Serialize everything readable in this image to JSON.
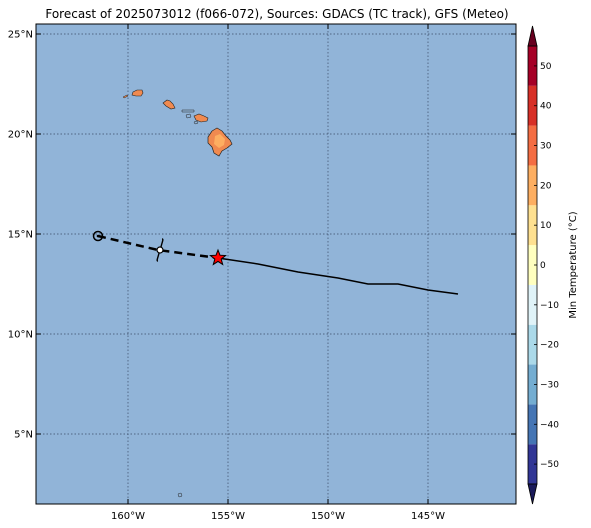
{
  "title": "Forecast of 2025073012 (f066-072), Sources: GDACS (TC track), GFS (Meteo)",
  "map": {
    "ocean_color": "#91b4d8",
    "lat_range": [
      1.5,
      25.5
    ],
    "lon_range": [
      -164.6,
      -140.6
    ],
    "lat_ticks": [
      {
        "value": 25,
        "label": "25°N"
      },
      {
        "value": 20,
        "label": "20°N"
      },
      {
        "value": 15,
        "label": "15°N"
      },
      {
        "value": 10,
        "label": "10°N"
      },
      {
        "value": 5,
        "label": "5°N"
      }
    ],
    "lon_ticks": [
      {
        "value": -160,
        "label": "160°W"
      },
      {
        "value": -155,
        "label": "155°W"
      },
      {
        "value": -150,
        "label": "150°W"
      },
      {
        "value": -145,
        "label": "145°W"
      }
    ],
    "gridlines": "dotted"
  },
  "track": {
    "past_dashed": [
      [
        -161.5,
        14.9
      ],
      [
        -158.5,
        14.2
      ],
      [
        -155.5,
        13.8
      ]
    ],
    "forecast_solid": [
      [
        -155.5,
        13.8
      ],
      [
        -153.5,
        13.5
      ],
      [
        -151.5,
        13.1
      ],
      [
        -149.5,
        12.8
      ],
      [
        -148.0,
        12.5
      ],
      [
        -146.5,
        12.5
      ],
      [
        -145.0,
        12.2
      ],
      [
        -143.5,
        12.0
      ]
    ],
    "start_marker": [
      -161.5,
      14.9
    ],
    "storm_symbol": [
      -158.4,
      14.2
    ],
    "current_position": [
      -155.5,
      13.8
    ],
    "current_color": "#ff0000"
  },
  "colorbar": {
    "label": "Min Temperature (°C)",
    "ticks": [
      50,
      40,
      30,
      20,
      10,
      0,
      -10,
      -20,
      -30,
      -40,
      -50
    ],
    "range": [
      -55,
      55
    ],
    "colors": [
      "#313695",
      "#4575b4",
      "#74add1",
      "#abd9e9",
      "#e0f3f8",
      "#ffffbf",
      "#fee090",
      "#fdae61",
      "#f46d43",
      "#d73027",
      "#a50026"
    ],
    "arrow_low_color": "#1a1a5a",
    "arrow_high_color": "#67001f"
  },
  "land_color": "#f08a50"
}
